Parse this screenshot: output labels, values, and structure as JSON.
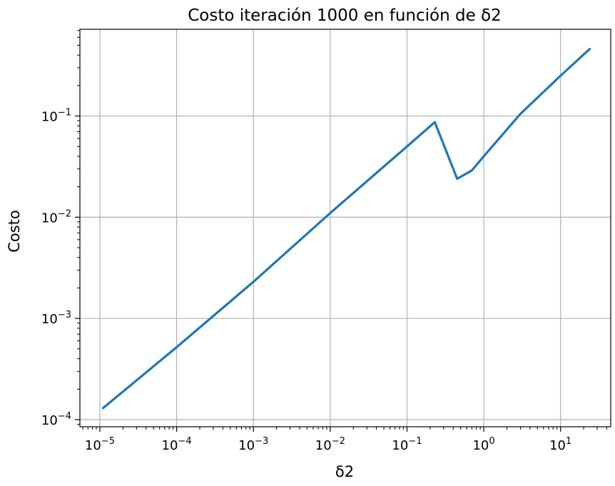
{
  "chart_data": {
    "type": "line",
    "title": "Costo iteración 1000 en función de δ2",
    "xlabel": "δ2",
    "ylabel": "Costo",
    "xscale": "log",
    "yscale": "log",
    "xlim": [
      5.5e-06,
      45
    ],
    "ylim": [
      8.5e-05,
      0.72
    ],
    "grid": true,
    "line_color": "#1f77b4",
    "x_ticks": [
      {
        "base": "10",
        "exp": "−5"
      },
      {
        "base": "10",
        "exp": "−4"
      },
      {
        "base": "10",
        "exp": "−3"
      },
      {
        "base": "10",
        "exp": "−2"
      },
      {
        "base": "10",
        "exp": "−1"
      },
      {
        "base": "10",
        "exp": "0"
      },
      {
        "base": "10",
        "exp": "1"
      }
    ],
    "y_ticks": [
      {
        "base": "10",
        "exp": "−4"
      },
      {
        "base": "10",
        "exp": "−3"
      },
      {
        "base": "10",
        "exp": "−2"
      },
      {
        "base": "10",
        "exp": "−1"
      }
    ],
    "series": [
      {
        "x": [
          1.1e-05,
          0.0001,
          0.001,
          0.01,
          0.1,
          0.23,
          0.45,
          0.7,
          1.0,
          3.0,
          10.0,
          24.0
        ],
        "y": [
          0.00013,
          0.00052,
          0.0023,
          0.011,
          0.05,
          0.087,
          0.024,
          0.029,
          0.04,
          0.105,
          0.25,
          0.46
        ]
      }
    ]
  }
}
